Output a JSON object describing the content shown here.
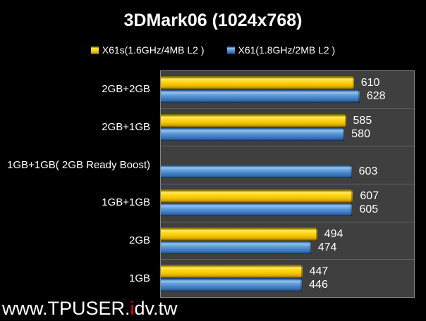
{
  "watermark": {
    "prefix": "www.TPUSER.",
    "highlight": "i",
    "suffix": "dv.tw",
    "highlight_color": "#ee0000"
  },
  "chart_data": {
    "type": "bar",
    "orientation": "horizontal",
    "title": "3DMark06 (1024x768)",
    "categories": [
      "2GB+2GB",
      "2GB+1GB",
      "1GB+1GB( 2GB Ready Boost)",
      "1GB+1GB",
      "2GB",
      "1GB"
    ],
    "series": [
      {
        "name": "X61s(1.6GHz/4MB L2 )",
        "color": "#FFD512",
        "values": [
          610,
          585,
          null,
          607,
          494,
          447
        ]
      },
      {
        "name": "X61(1.8GHz/2MB L2 )",
        "color": "#4A86CC",
        "values": [
          628,
          580,
          603,
          605,
          474,
          446
        ]
      }
    ],
    "xlim": [
      0,
      800
    ],
    "value_labels": true,
    "grid": "category-separators-only",
    "legend_position": "top-center",
    "plot_background": "#3F3F3F",
    "page_background": "#000000"
  }
}
